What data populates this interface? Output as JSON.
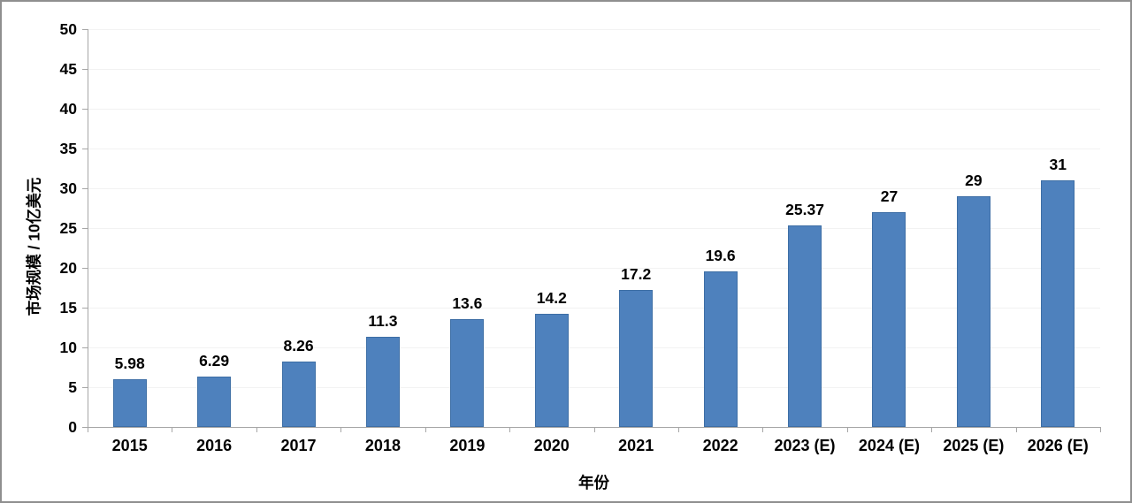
{
  "chart_data": {
    "type": "bar",
    "title": "",
    "xlabel": "年份",
    "ylabel": "市场规模 / 10亿美元",
    "categories": [
      "2015",
      "2016",
      "2017",
      "2018",
      "2019",
      "2020",
      "2021",
      "2022",
      "2023 (E)",
      "2024 (E)",
      "2025 (E)",
      "2026 (E)"
    ],
    "values": [
      5.98,
      6.29,
      8.26,
      11.3,
      13.6,
      14.2,
      17.2,
      19.6,
      25.37,
      27,
      29,
      31
    ],
    "value_labels": [
      "5.98",
      "6.29",
      "8.26",
      "11.3",
      "13.6",
      "14.2",
      "17.2",
      "19.6",
      "25.37",
      "27",
      "29",
      "31"
    ],
    "ylim": [
      0,
      50
    ],
    "y_ticks": [
      0,
      5,
      10,
      15,
      20,
      25,
      30,
      35,
      40,
      45,
      50
    ],
    "grid": true,
    "legend": "none",
    "bar_color": "#4E81BD",
    "bar_border_color": "#3D6EA5",
    "axis_color": "#A6A6A6",
    "gridline_color": "#F2F2F2",
    "label_color": "#000000"
  }
}
